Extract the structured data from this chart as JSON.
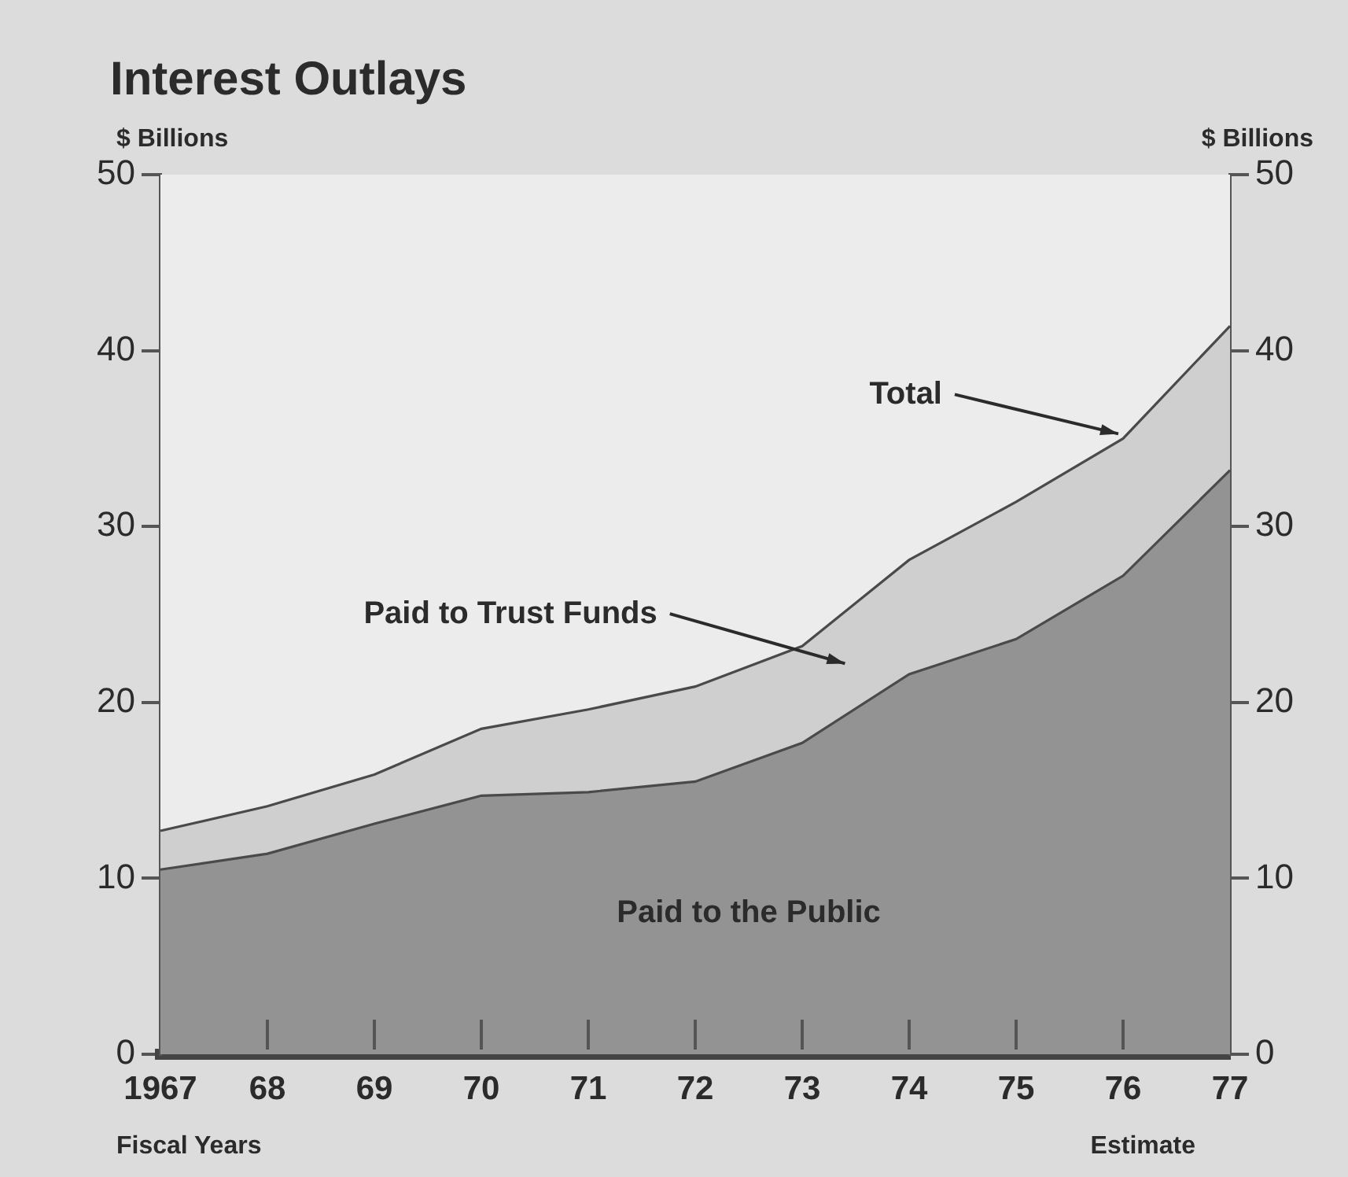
{
  "chart_data": {
    "type": "area",
    "title": "Interest Outlays",
    "xlabel": "Fiscal Years",
    "ylabel": "$ Billions",
    "y2label": "$ Billions",
    "categories": [
      "1967",
      "68",
      "69",
      "70",
      "71",
      "72",
      "73",
      "74",
      "75",
      "76",
      "77"
    ],
    "series": [
      {
        "name": "Paid to the Public",
        "color": "#939393",
        "values": [
          10.5,
          11.4,
          13.1,
          14.7,
          14.9,
          15.5,
          17.7,
          21.6,
          23.6,
          27.2,
          33.2
        ]
      },
      {
        "name": "Paid to Trust Funds",
        "color": "#cfcfcf",
        "values": [
          2.2,
          2.7,
          2.8,
          3.8,
          4.7,
          5.4,
          5.5,
          6.5,
          7.8,
          7.8,
          8.2
        ]
      }
    ],
    "stacked": true,
    "ylim": [
      0,
      50
    ],
    "yticks": [
      0,
      10,
      20,
      30,
      40,
      50
    ],
    "y2lim": [
      0,
      50
    ],
    "y2ticks": [
      0,
      10,
      20,
      30,
      40,
      50
    ],
    "annotations": [
      {
        "text": "Total",
        "x": "76",
        "y": 35.0
      },
      "Estimate"
    ],
    "grid": false,
    "legend": false
  }
}
